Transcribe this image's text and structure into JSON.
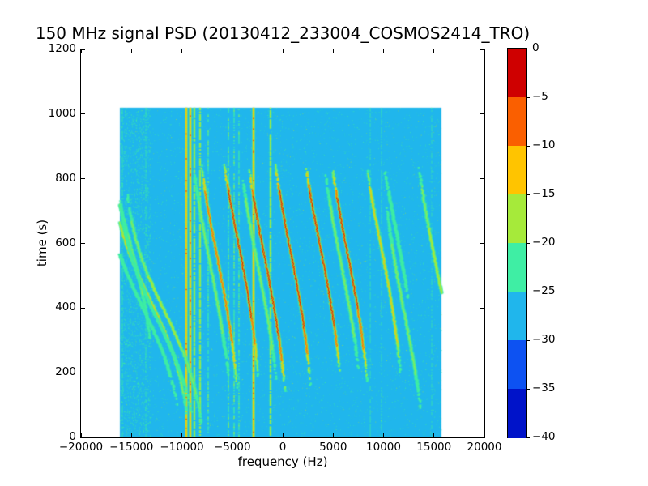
{
  "chart_data": {
    "type": "heatmap",
    "title": "150 MHz signal PSD (20130412_233004_COSMOS2414_TRO)",
    "xlabel": "frequency (Hz)",
    "ylabel": "time (s)",
    "xlim": [
      -20000,
      20000
    ],
    "ylim": [
      0,
      1200
    ],
    "xticks": [
      {
        "v": -20000,
        "label": "−20000"
      },
      {
        "v": -15000,
        "label": "−15000"
      },
      {
        "v": -10000,
        "label": "−10000"
      },
      {
        "v": -5000,
        "label": "−5000"
      },
      {
        "v": 0,
        "label": "0"
      },
      {
        "v": 5000,
        "label": "5000"
      },
      {
        "v": 10000,
        "label": "10000"
      },
      {
        "v": 15000,
        "label": "15000"
      },
      {
        "v": 20000,
        "label": "20000"
      }
    ],
    "yticks": [
      {
        "v": 0,
        "label": "0"
      },
      {
        "v": 200,
        "label": "200"
      },
      {
        "v": 400,
        "label": "400"
      },
      {
        "v": 600,
        "label": "600"
      },
      {
        "v": 800,
        "label": "800"
      },
      {
        "v": 1000,
        "label": "1000"
      },
      {
        "v": 1200,
        "label": "1200"
      }
    ],
    "colorbar": {
      "ticks": [
        "0",
        "−5",
        "−10",
        "−15",
        "−20",
        "−25",
        "−30",
        "−35",
        "−40"
      ],
      "values": [
        0,
        -5,
        -10,
        -15,
        -20,
        -25,
        -30,
        -35,
        -40
      ],
      "colors_top_to_bottom": [
        "#cf0000",
        "#fa5f00",
        "#ffc400",
        "#a6ea3a",
        "#3feea4",
        "#20b6ec",
        "#0d52f2",
        "#0013c9"
      ]
    },
    "palette": {
      "background_band": "#20b6ec",
      "faint_trace": "#3feea4",
      "medium_trace": "#a6ea3a",
      "strong_trace": "#ffc400",
      "hot_trace": "#fa5f00",
      "core_trace": "#d40000"
    },
    "data_extent": {
      "freq_hz": [
        -16150,
        15750
      ],
      "time_s": [
        0,
        1020
      ]
    },
    "background_level_db": -27,
    "carriers": [
      {
        "freq": -15900,
        "strength": 0.35
      },
      {
        "freq": -13570,
        "strength": 0.3
      },
      {
        "freq": -9560,
        "strength": 0.95
      },
      {
        "freq": -9160,
        "strength": 0.85
      },
      {
        "freq": -8760,
        "strength": 0.7
      },
      {
        "freq": -8190,
        "strength": 0.6
      },
      {
        "freq": -7390,
        "strength": 0.45
      },
      {
        "freq": -5380,
        "strength": 0.5
      },
      {
        "freq": -4820,
        "strength": 0.5
      },
      {
        "freq": -4340,
        "strength": 0.45
      },
      {
        "freq": -2890,
        "strength": 0.85
      },
      {
        "freq": -1210,
        "strength": 0.6
      },
      {
        "freq": 8680,
        "strength": 0.3
      },
      {
        "freq": 9800,
        "strength": 0.28
      },
      {
        "freq": 14780,
        "strength": 0.32
      }
    ],
    "doppler_traces": [
      {
        "f_center": -15300,
        "t_center": 620,
        "amplitude_hz": 3000,
        "tau_s": 350,
        "strength": 0.5,
        "t_visible": [
          300,
          840
        ],
        "echo": false
      },
      {
        "f_center": -13200,
        "t_center": 430,
        "amplitude_hz": 4300,
        "tau_s": 280,
        "strength": 0.72,
        "t_visible": [
          60,
          790
        ],
        "echo": true
      },
      {
        "f_center": -11700,
        "t_center": 390,
        "amplitude_hz": 4300,
        "tau_s": 280,
        "strength": 0.62,
        "t_visible": [
          40,
          760
        ],
        "echo": true
      },
      {
        "f_center": -6500,
        "t_center": 560,
        "amplitude_hz": 2700,
        "tau_s": 430,
        "strength": 0.9,
        "t_visible": [
          150,
          845
        ],
        "echo": true
      },
      {
        "f_center": -4500,
        "t_center": 620,
        "amplitude_hz": 2700,
        "tau_s": 430,
        "strength": 1.0,
        "t_visible": [
          190,
          845
        ],
        "echo": false
      },
      {
        "f_center": -1800,
        "t_center": 560,
        "amplitude_hz": 2700,
        "tau_s": 430,
        "strength": 1.0,
        "t_visible": [
          140,
          830
        ],
        "echo": true
      },
      {
        "f_center": 700,
        "t_center": 590,
        "amplitude_hz": 2700,
        "tau_s": 430,
        "strength": 1.0,
        "t_visible": [
          160,
          845
        ],
        "echo": false
      },
      {
        "f_center": 3700,
        "t_center": 595,
        "amplitude_hz": 2700,
        "tau_s": 430,
        "strength": 1.0,
        "t_visible": [
          190,
          845
        ],
        "echo": false
      },
      {
        "f_center": 6400,
        "t_center": 575,
        "amplitude_hz": 2700,
        "tau_s": 430,
        "strength": 0.95,
        "t_visible": [
          170,
          835
        ],
        "echo": true
      },
      {
        "f_center": 9700,
        "t_center": 600,
        "amplitude_hz": 2700,
        "tau_s": 430,
        "strength": 0.78,
        "t_visible": [
          200,
          835
        ],
        "echo": false
      },
      {
        "f_center": 11000,
        "t_center": 680,
        "amplitude_hz": 2700,
        "tau_s": 430,
        "strength": 0.4,
        "t_visible": [
          420,
          830
        ],
        "echo": false
      },
      {
        "f_center": 12100,
        "t_center": 380,
        "amplitude_hz": 2700,
        "tau_s": 430,
        "strength": 0.5,
        "t_visible": [
          90,
          720
        ],
        "echo": false
      },
      {
        "f_center": 15100,
        "t_center": 550,
        "amplitude_hz": 2700,
        "tau_s": 430,
        "strength": 0.6,
        "t_visible": [
          330,
          835
        ],
        "echo": false
      }
    ],
    "noise": {
      "speckles": 6500,
      "left_edge_extra_speckles": 1800
    }
  }
}
